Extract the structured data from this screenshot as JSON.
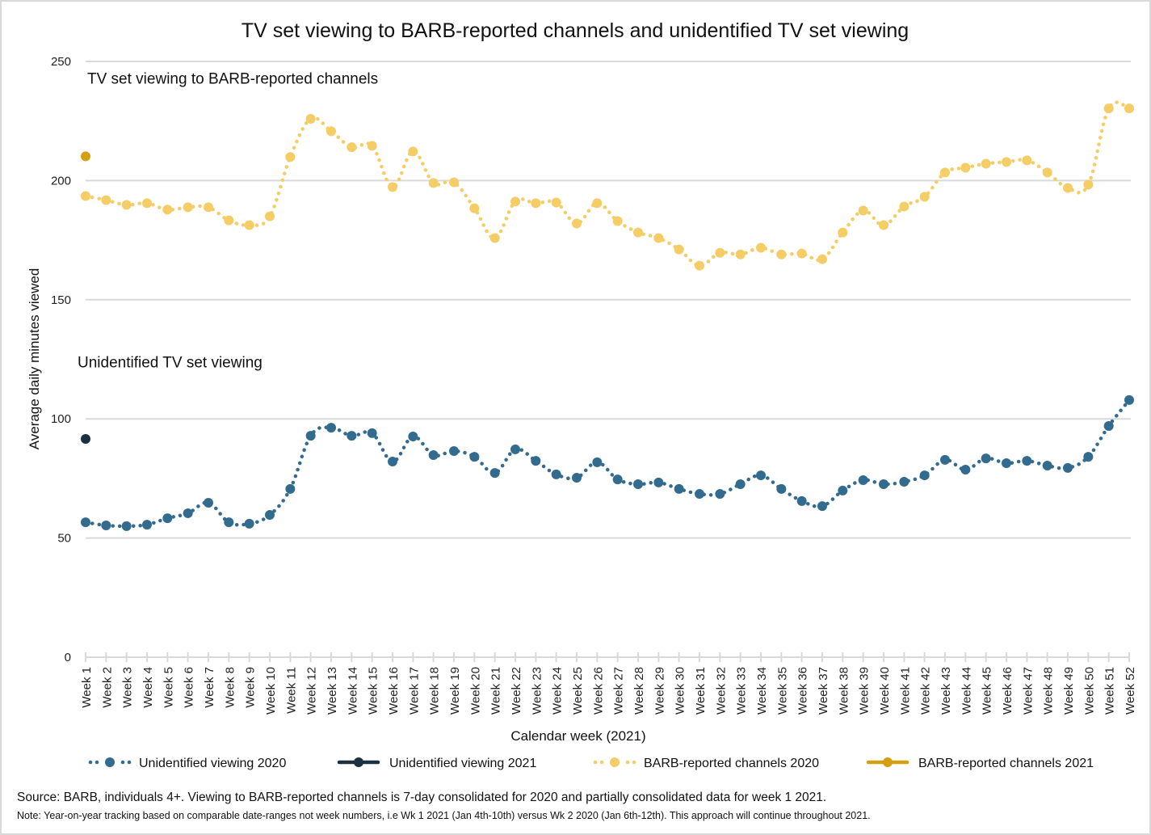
{
  "chart_data": {
    "type": "line",
    "title": "TV set viewing to BARB-reported channels and unidentified TV set viewing",
    "xlabel": "Calendar week (2021)",
    "ylabel": "Average daily minutes viewed",
    "ylim": [
      0,
      250
    ],
    "yticks": [
      0,
      50,
      100,
      150,
      200,
      250
    ],
    "grid": true,
    "legend_position": "bottom",
    "categories": [
      "Week 1",
      "Week 2",
      "Week 3",
      "Week 4",
      "Week 5",
      "Week 6",
      "Week 7",
      "Week 8",
      "Week 9",
      "Week 10",
      "Week 11",
      "Week 12",
      "Week 13",
      "Week 14",
      "Week 15",
      "Week 16",
      "Week 17",
      "Week 18",
      "Week 19",
      "Week 20",
      "Week 21",
      "Week 22",
      "Week 23",
      "Week 24",
      "Week 25",
      "Week 26",
      "Week 27",
      "Week 28",
      "Week 29",
      "Week 30",
      "Week 31",
      "Week 32",
      "Week 33",
      "Week 34",
      "Week 35",
      "Week 36",
      "Week 37",
      "Week 38",
      "Week 39",
      "Week 40",
      "Week 41",
      "Week 42",
      "Week 43",
      "Week 44",
      "Week 45",
      "Week 46",
      "Week 47",
      "Week 48",
      "Week 49",
      "Week 50",
      "Week 51",
      "Week 52"
    ],
    "annotations": [
      {
        "text": "TV set viewing to BARB-reported channels",
        "y": 243
      },
      {
        "text": "Unidentified TV set viewing",
        "y": 124
      }
    ],
    "series": [
      {
        "name": "Unidentified viewing 2020",
        "style": "dotted",
        "color": "#336b8f",
        "values": [
          56.6,
          55.3,
          55.0,
          55.6,
          58.3,
          60.4,
          64.8,
          56.6,
          56.0,
          59.7,
          70.6,
          92.9,
          96.3,
          92.9,
          94.0,
          82.1,
          92.6,
          84.8,
          86.5,
          84.1,
          77.3,
          87.2,
          82.4,
          76.7,
          75.3,
          81.8,
          74.6,
          72.6,
          73.3,
          70.6,
          68.5,
          68.5,
          72.6,
          76.3,
          70.6,
          65.5,
          63.4,
          69.9,
          74.3,
          72.6,
          73.6,
          76.3,
          82.8,
          78.7,
          83.4,
          81.4,
          82.4,
          80.4,
          79.4,
          84.1,
          97.0,
          107.9
        ]
      },
      {
        "name": "Unidentified viewing 2021",
        "style": "solid",
        "color": "#1b3142",
        "values": [
          91.6
        ]
      },
      {
        "name": "BARB-reported channels 2020",
        "style": "dotted",
        "color": "#f5cd66",
        "values": [
          193.5,
          191.8,
          189.8,
          190.5,
          187.8,
          188.8,
          188.8,
          183.3,
          181.3,
          185.0,
          209.9,
          225.9,
          220.7,
          214.0,
          214.6,
          197.3,
          212.2,
          199.0,
          199.3,
          188.4,
          175.9,
          191.2,
          190.5,
          190.8,
          182.0,
          190.5,
          183.0,
          178.2,
          175.9,
          171.1,
          164.3,
          169.7,
          169.0,
          171.8,
          169.0,
          169.4,
          167.0,
          178.2,
          187.4,
          181.3,
          189.1,
          193.2,
          203.4,
          205.4,
          207.1,
          207.8,
          208.5,
          203.4,
          196.9,
          198.3,
          230.3,
          230.3
        ]
      },
      {
        "name": "BARB-reported channels 2021",
        "style": "solid",
        "color": "#d59f12",
        "values": [
          210.2
        ]
      }
    ]
  },
  "footer": {
    "source": "Source: BARB, individuals 4+. Viewing to BARB-reported channels is 7-day consolidated for 2020 and partially consolidated data for week 1 2021.",
    "note": "Note: Year-on-year tracking based on comparable date-ranges not week numbers, i.e Wk 1 2021 (Jan 4th-10th) versus Wk 2 2020 (Jan 6th-12th). This approach will continue throughout 2021."
  }
}
